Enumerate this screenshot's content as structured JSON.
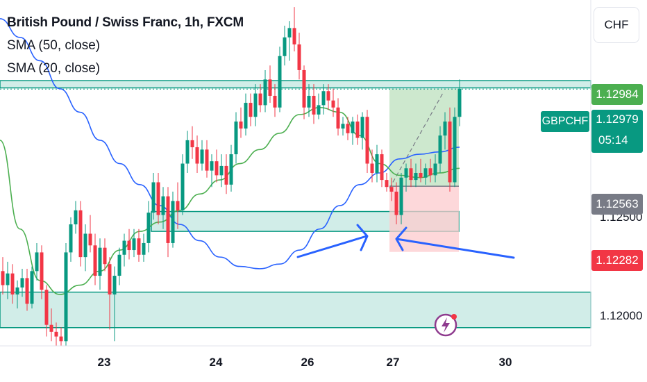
{
  "header": {
    "title": "British Pound / Swiss Franc, 1h, FXCM",
    "indicators": [
      "SMA (50, close)",
      "SMA (20, close)"
    ],
    "currency": "CHF"
  },
  "symbol": "GBPCHF",
  "price_labels": {
    "upper_zone": "1.12984",
    "last": "1.12979",
    "countdown": "05:14",
    "entry": "1.12563",
    "stop": "1.12282"
  },
  "colors": {
    "up": "#089981",
    "down": "#f23645",
    "sma50": "#2962ff",
    "sma20": "#4caf50",
    "zone_fill": "#d1ede8",
    "zone_border": "#089981",
    "target_fill": "#c8e6c9",
    "stop_fill": "#fccbcd",
    "upper_label": "#4caf50",
    "entry_label": "#787b86",
    "arrows": "#2962ff"
  },
  "chart_data": {
    "type": "candlestick",
    "title": "British Pound / Swiss Franc, 1h, FXCM",
    "x_ticks": [
      "23",
      "24",
      "26",
      "27",
      "30"
    ],
    "y_ticks": [
      "1.12500",
      "1.12000"
    ],
    "ylim": [
      1.1188,
      1.1336
    ],
    "series": [
      {
        "name": "SMA (50, close)",
        "values": [
          1.1328,
          1.132,
          1.131,
          1.1298,
          1.1288,
          1.1276,
          1.1266,
          1.1257,
          1.1248,
          1.124,
          1.1233,
          1.1226,
          1.1222,
          1.1221,
          1.1223,
          1.1229,
          1.1238,
          1.1248,
          1.1257,
          1.1262,
          1.1268,
          1.127,
          1.1271,
          1.1273
        ]
      },
      {
        "name": "SMA (20, close)",
        "values": [
          1.1276,
          1.1238,
          1.1216,
          1.121,
          1.1214,
          1.122,
          1.1229,
          1.1237,
          1.1241,
          1.1246,
          1.1253,
          1.1259,
          1.1266,
          1.1272,
          1.1279,
          1.1287,
          1.129,
          1.1288,
          1.1278,
          1.1266,
          1.1261,
          1.126,
          1.1262,
          1.1264
        ]
      }
    ],
    "candles": [
      {
        "o": 1.122,
        "h": 1.1226,
        "l": 1.121,
        "c": 1.1214
      },
      {
        "o": 1.1214,
        "h": 1.1224,
        "l": 1.1208,
        "c": 1.1219
      },
      {
        "o": 1.1219,
        "h": 1.1223,
        "l": 1.1206,
        "c": 1.121
      },
      {
        "o": 1.121,
        "h": 1.1216,
        "l": 1.1204,
        "c": 1.1213
      },
      {
        "o": 1.1213,
        "h": 1.1221,
        "l": 1.1209,
        "c": 1.1217
      },
      {
        "o": 1.1217,
        "h": 1.1221,
        "l": 1.1203,
        "c": 1.1206
      },
      {
        "o": 1.1206,
        "h": 1.1222,
        "l": 1.1204,
        "c": 1.122
      },
      {
        "o": 1.122,
        "h": 1.1232,
        "l": 1.1216,
        "c": 1.1228
      },
      {
        "o": 1.1228,
        "h": 1.1231,
        "l": 1.1208,
        "c": 1.1212
      },
      {
        "o": 1.1212,
        "h": 1.1214,
        "l": 1.1192,
        "c": 1.1197
      },
      {
        "o": 1.1197,
        "h": 1.1204,
        "l": 1.119,
        "c": 1.1194
      },
      {
        "o": 1.1194,
        "h": 1.1198,
        "l": 1.1188,
        "c": 1.1192
      },
      {
        "o": 1.1192,
        "h": 1.1196,
        "l": 1.1188,
        "c": 1.119
      },
      {
        "o": 1.119,
        "h": 1.1232,
        "l": 1.1188,
        "c": 1.1228
      },
      {
        "o": 1.1228,
        "h": 1.1243,
        "l": 1.1224,
        "c": 1.124
      },
      {
        "o": 1.124,
        "h": 1.125,
        "l": 1.1236,
        "c": 1.1246
      },
      {
        "o": 1.1246,
        "h": 1.125,
        "l": 1.1222,
        "c": 1.1226
      },
      {
        "o": 1.1226,
        "h": 1.124,
        "l": 1.122,
        "c": 1.1236
      },
      {
        "o": 1.1236,
        "h": 1.1244,
        "l": 1.1228,
        "c": 1.1231
      },
      {
        "o": 1.1231,
        "h": 1.1236,
        "l": 1.1214,
        "c": 1.1218
      },
      {
        "o": 1.1218,
        "h": 1.1234,
        "l": 1.1212,
        "c": 1.123
      },
      {
        "o": 1.123,
        "h": 1.1234,
        "l": 1.122,
        "c": 1.1223
      },
      {
        "o": 1.1223,
        "h": 1.1226,
        "l": 1.1195,
        "c": 1.121
      },
      {
        "o": 1.121,
        "h": 1.1222,
        "l": 1.119,
        "c": 1.1218
      },
      {
        "o": 1.1218,
        "h": 1.123,
        "l": 1.1214,
        "c": 1.1227
      },
      {
        "o": 1.1227,
        "h": 1.1236,
        "l": 1.1222,
        "c": 1.1233
      },
      {
        "o": 1.1233,
        "h": 1.1238,
        "l": 1.1225,
        "c": 1.1229
      },
      {
        "o": 1.1229,
        "h": 1.1238,
        "l": 1.1226,
        "c": 1.1234
      },
      {
        "o": 1.1234,
        "h": 1.1238,
        "l": 1.1224,
        "c": 1.1227
      },
      {
        "o": 1.1227,
        "h": 1.1236,
        "l": 1.1224,
        "c": 1.1232
      },
      {
        "o": 1.1232,
        "h": 1.125,
        "l": 1.1228,
        "c": 1.1245
      },
      {
        "o": 1.1245,
        "h": 1.1262,
        "l": 1.1242,
        "c": 1.1258
      },
      {
        "o": 1.1258,
        "h": 1.1262,
        "l": 1.124,
        "c": 1.1244
      },
      {
        "o": 1.1244,
        "h": 1.1256,
        "l": 1.1238,
        "c": 1.1252
      },
      {
        "o": 1.1252,
        "h": 1.1256,
        "l": 1.1226,
        "c": 1.1232
      },
      {
        "o": 1.1232,
        "h": 1.1254,
        "l": 1.123,
        "c": 1.125
      },
      {
        "o": 1.125,
        "h": 1.1258,
        "l": 1.1238,
        "c": 1.1246
      },
      {
        "o": 1.1246,
        "h": 1.127,
        "l": 1.1244,
        "c": 1.1266
      },
      {
        "o": 1.1266,
        "h": 1.128,
        "l": 1.1262,
        "c": 1.1276
      },
      {
        "o": 1.1276,
        "h": 1.1282,
        "l": 1.1268,
        "c": 1.1273
      },
      {
        "o": 1.1273,
        "h": 1.1278,
        "l": 1.1262,
        "c": 1.1266
      },
      {
        "o": 1.1266,
        "h": 1.1276,
        "l": 1.1263,
        "c": 1.1272
      },
      {
        "o": 1.1272,
        "h": 1.1276,
        "l": 1.126,
        "c": 1.1263
      },
      {
        "o": 1.1263,
        "h": 1.127,
        "l": 1.1256,
        "c": 1.1267
      },
      {
        "o": 1.1267,
        "h": 1.1272,
        "l": 1.1258,
        "c": 1.1261
      },
      {
        "o": 1.1261,
        "h": 1.127,
        "l": 1.1256,
        "c": 1.1265
      },
      {
        "o": 1.1265,
        "h": 1.127,
        "l": 1.1253,
        "c": 1.1257
      },
      {
        "o": 1.1257,
        "h": 1.1274,
        "l": 1.1254,
        "c": 1.127
      },
      {
        "o": 1.127,
        "h": 1.1288,
        "l": 1.1266,
        "c": 1.1284
      },
      {
        "o": 1.1284,
        "h": 1.129,
        "l": 1.1277,
        "c": 1.1281
      },
      {
        "o": 1.1281,
        "h": 1.1296,
        "l": 1.1278,
        "c": 1.1292
      },
      {
        "o": 1.1292,
        "h": 1.1296,
        "l": 1.1282,
        "c": 1.1286
      },
      {
        "o": 1.1286,
        "h": 1.13,
        "l": 1.1282,
        "c": 1.1296
      },
      {
        "o": 1.1296,
        "h": 1.13,
        "l": 1.1288,
        "c": 1.1291
      },
      {
        "o": 1.1291,
        "h": 1.1306,
        "l": 1.1288,
        "c": 1.1302
      },
      {
        "o": 1.1302,
        "h": 1.1308,
        "l": 1.1292,
        "c": 1.1295
      },
      {
        "o": 1.1295,
        "h": 1.13,
        "l": 1.1286,
        "c": 1.129
      },
      {
        "o": 1.129,
        "h": 1.1316,
        "l": 1.1288,
        "c": 1.1312
      },
      {
        "o": 1.1312,
        "h": 1.1325,
        "l": 1.1308,
        "c": 1.132
      },
      {
        "o": 1.132,
        "h": 1.1327,
        "l": 1.131,
        "c": 1.1324
      },
      {
        "o": 1.1324,
        "h": 1.1333,
        "l": 1.1314,
        "c": 1.1317
      },
      {
        "o": 1.1317,
        "h": 1.1322,
        "l": 1.1302,
        "c": 1.1306
      },
      {
        "o": 1.1306,
        "h": 1.1308,
        "l": 1.1285,
        "c": 1.129
      },
      {
        "o": 1.129,
        "h": 1.13,
        "l": 1.1286,
        "c": 1.1295
      },
      {
        "o": 1.1295,
        "h": 1.13,
        "l": 1.1283,
        "c": 1.1287
      },
      {
        "o": 1.1287,
        "h": 1.1296,
        "l": 1.1285,
        "c": 1.1291
      },
      {
        "o": 1.1291,
        "h": 1.13,
        "l": 1.1287,
        "c": 1.1297
      },
      {
        "o": 1.1297,
        "h": 1.13,
        "l": 1.1289,
        "c": 1.1293
      },
      {
        "o": 1.1293,
        "h": 1.1298,
        "l": 1.1286,
        "c": 1.129
      },
      {
        "o": 1.129,
        "h": 1.1294,
        "l": 1.1278,
        "c": 1.1281
      },
      {
        "o": 1.1281,
        "h": 1.1286,
        "l": 1.1278,
        "c": 1.1283
      },
      {
        "o": 1.1283,
        "h": 1.1286,
        "l": 1.1276,
        "c": 1.1279
      },
      {
        "o": 1.1279,
        "h": 1.1286,
        "l": 1.1274,
        "c": 1.1284
      },
      {
        "o": 1.1284,
        "h": 1.1287,
        "l": 1.1274,
        "c": 1.1277
      },
      {
        "o": 1.1277,
        "h": 1.1288,
        "l": 1.1272,
        "c": 1.1286
      },
      {
        "o": 1.1286,
        "h": 1.1289,
        "l": 1.1262,
        "c": 1.1266
      },
      {
        "o": 1.1266,
        "h": 1.1272,
        "l": 1.1258,
        "c": 1.1262
      },
      {
        "o": 1.1262,
        "h": 1.1274,
        "l": 1.1258,
        "c": 1.127
      },
      {
        "o": 1.127,
        "h": 1.1272,
        "l": 1.1256,
        "c": 1.1259
      },
      {
        "o": 1.1259,
        "h": 1.1262,
        "l": 1.1254,
        "c": 1.1256
      },
      {
        "o": 1.1256,
        "h": 1.126,
        "l": 1.125,
        "c": 1.1254
      },
      {
        "o": 1.1254,
        "h": 1.1258,
        "l": 1.124,
        "c": 1.1244
      },
      {
        "o": 1.1244,
        "h": 1.1262,
        "l": 1.124,
        "c": 1.126
      },
      {
        "o": 1.126,
        "h": 1.1266,
        "l": 1.1254,
        "c": 1.1264
      },
      {
        "o": 1.1264,
        "h": 1.1268,
        "l": 1.1256,
        "c": 1.1259
      },
      {
        "o": 1.1259,
        "h": 1.1266,
        "l": 1.1256,
        "c": 1.1262
      },
      {
        "o": 1.1262,
        "h": 1.1268,
        "l": 1.1258,
        "c": 1.126
      },
      {
        "o": 1.126,
        "h": 1.1266,
        "l": 1.1257,
        "c": 1.1264
      },
      {
        "o": 1.1264,
        "h": 1.1268,
        "l": 1.1258,
        "c": 1.1261
      },
      {
        "o": 1.1261,
        "h": 1.127,
        "l": 1.1258,
        "c": 1.1266
      },
      {
        "o": 1.1266,
        "h": 1.1282,
        "l": 1.1262,
        "c": 1.1278
      },
      {
        "o": 1.1278,
        "h": 1.1288,
        "l": 1.1272,
        "c": 1.1284
      },
      {
        "o": 1.1284,
        "h": 1.129,
        "l": 1.1254,
        "c": 1.1258
      },
      {
        "o": 1.1258,
        "h": 1.129,
        "l": 1.1256,
        "c": 1.1286
      },
      {
        "o": 1.1286,
        "h": 1.1302,
        "l": 1.1282,
        "c": 1.1298
      }
    ],
    "annotations": [
      {
        "type": "zone",
        "top": 1.13015,
        "bottom": 1.12984
      },
      {
        "type": "zone",
        "top": 1.12455,
        "bottom": 1.1237
      },
      {
        "type": "zone",
        "top": 1.1211,
        "bottom": 1.11958
      },
      {
        "type": "long_position",
        "entry": 1.12563,
        "target": 1.12979,
        "stop": 1.12282
      },
      {
        "type": "arrow",
        "direction": "up-right"
      },
      {
        "type": "arrow",
        "direction": "left"
      }
    ]
  }
}
